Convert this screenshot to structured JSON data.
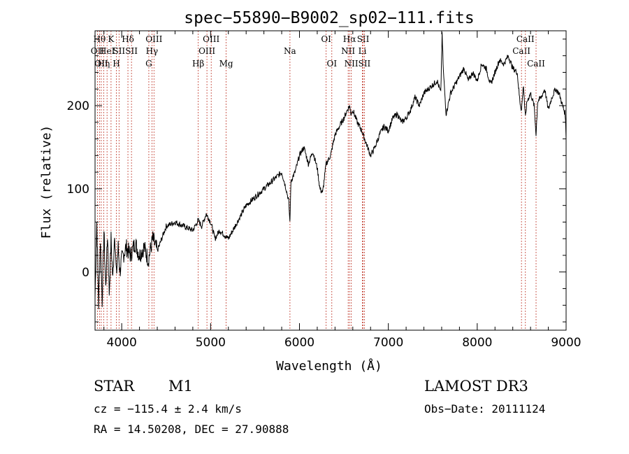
{
  "chart_data": {
    "type": "line",
    "title": "spec−55890−B9002_sp02−111.fits",
    "xlabel": "Wavelength (Å)",
    "ylabel": "Flux (relative)",
    "xlim": [
      3700,
      9000
    ],
    "ylim": [
      -70,
      290
    ],
    "x_ticks": [
      4000,
      5000,
      6000,
      7000,
      8000,
      9000
    ],
    "y_ticks": [
      0,
      100,
      200
    ],
    "series": [
      {
        "name": "spectrum",
        "x": [
          3700,
          3720,
          3740,
          3760,
          3780,
          3800,
          3820,
          3840,
          3860,
          3880,
          3900,
          3920,
          3940,
          3960,
          3980,
          4000,
          4050,
          4100,
          4150,
          4200,
          4250,
          4300,
          4350,
          4400,
          4500,
          4600,
          4700,
          4800,
          4860,
          4900,
          4950,
          5000,
          5050,
          5100,
          5150,
          5200,
          5300,
          5400,
          5500,
          5600,
          5700,
          5800,
          5850,
          5880,
          5892,
          5905,
          5950,
          6000,
          6050,
          6100,
          6150,
          6200,
          6230,
          6260,
          6300,
          6350,
          6400,
          6450,
          6500,
          6540,
          6563,
          6580,
          6600,
          6650,
          6700,
          6750,
          6800,
          6850,
          6900,
          6950,
          7000,
          7050,
          7100,
          7150,
          7200,
          7250,
          7300,
          7350,
          7400,
          7500,
          7550,
          7590,
          7605,
          7620,
          7650,
          7700,
          7750,
          7800,
          7850,
          7900,
          7950,
          8000,
          8050,
          8100,
          8150,
          8200,
          8250,
          8300,
          8350,
          8400,
          8450,
          8480,
          8498,
          8520,
          8542,
          8560,
          8600,
          8640,
          8662,
          8680,
          8720,
          8760,
          8800,
          8840,
          8880,
          8920,
          8960,
          8990,
          9000
        ],
        "values": [
          -30,
          60,
          -40,
          40,
          -35,
          50,
          -20,
          45,
          -25,
          40,
          -10,
          50,
          -5,
          30,
          0,
          15,
          30,
          20,
          35,
          20,
          30,
          15,
          40,
          25,
          55,
          60,
          55,
          50,
          62,
          55,
          70,
          60,
          40,
          50,
          45,
          40,
          60,
          80,
          90,
          100,
          110,
          120,
          100,
          85,
          60,
          110,
          120,
          140,
          150,
          130,
          145,
          125,
          100,
          95,
          130,
          140,
          165,
          175,
          185,
          195,
          200,
          190,
          195,
          180,
          170,
          155,
          140,
          150,
          165,
          175,
          170,
          185,
          190,
          180,
          185,
          195,
          210,
          200,
          215,
          225,
          230,
          215,
          285,
          240,
          190,
          215,
          225,
          235,
          245,
          230,
          240,
          230,
          250,
          245,
          225,
          240,
          255,
          250,
          260,
          245,
          240,
          205,
          195,
          225,
          185,
          205,
          215,
          200,
          165,
          205,
          210,
          220,
          195,
          210,
          220,
          215,
          200,
          190,
          160
        ]
      }
    ],
    "line_markers": [
      {
        "wavelength": 3727,
        "row": 1,
        "label": "OII"
      },
      {
        "wavelength": 3750,
        "row": 0,
        "label": "Hθ"
      },
      {
        "wavelength": 3770,
        "row": 2,
        "label": "OII"
      },
      {
        "wavelength": 3797,
        "row": 2,
        "label": "Hη"
      },
      {
        "wavelength": 3835,
        "row": 1,
        "label": "HeI"
      },
      {
        "wavelength": 3880,
        "row": 0,
        "label": "K"
      },
      {
        "wavelength": 3940,
        "row": 2,
        "label": "H"
      },
      {
        "wavelength": 3970,
        "row": 1,
        "label": "SII"
      },
      {
        "wavelength": 4070,
        "row": 0,
        "label": "Hδ"
      },
      {
        "wavelength": 4110,
        "row": 1,
        "label": "SII"
      },
      {
        "wavelength": 4305,
        "row": 2,
        "label": "G"
      },
      {
        "wavelength": 4340,
        "row": 1,
        "label": "Hγ"
      },
      {
        "wavelength": 4363,
        "row": 0,
        "label": "OIII"
      },
      {
        "wavelength": 4861,
        "row": 2,
        "label": "Hβ"
      },
      {
        "wavelength": 4959,
        "row": 1,
        "label": "OIII"
      },
      {
        "wavelength": 5007,
        "row": 0,
        "label": "OIII"
      },
      {
        "wavelength": 5175,
        "row": 2,
        "label": "Mg"
      },
      {
        "wavelength": 5893,
        "row": 1,
        "label": "Na"
      },
      {
        "wavelength": 6300,
        "row": 0,
        "label": "OI"
      },
      {
        "wavelength": 6364,
        "row": 2,
        "label": "OI"
      },
      {
        "wavelength": 6548,
        "row": 1,
        "label": "NII"
      },
      {
        "wavelength": 6563,
        "row": 0,
        "label": "Hα"
      },
      {
        "wavelength": 6583,
        "row": 2,
        "label": "NII"
      },
      {
        "wavelength": 6708,
        "row": 1,
        "label": "Li"
      },
      {
        "wavelength": 6716,
        "row": 0,
        "label": "SII"
      },
      {
        "wavelength": 6731,
        "row": 2,
        "label": "SII"
      },
      {
        "wavelength": 8498,
        "row": 1,
        "label": "CaII"
      },
      {
        "wavelength": 8542,
        "row": 0,
        "label": "CaII"
      },
      {
        "wavelength": 8662,
        "row": 2,
        "label": "CaII"
      }
    ]
  },
  "info": {
    "class": "STAR",
    "subclass": "M1",
    "survey": "LAMOST DR3",
    "cz": "cz = −115.4 ± 2.4 km/s",
    "obs_date": "Obs−Date: 20111124",
    "coords": "RA =  14.50208, DEC =  27.90888"
  }
}
